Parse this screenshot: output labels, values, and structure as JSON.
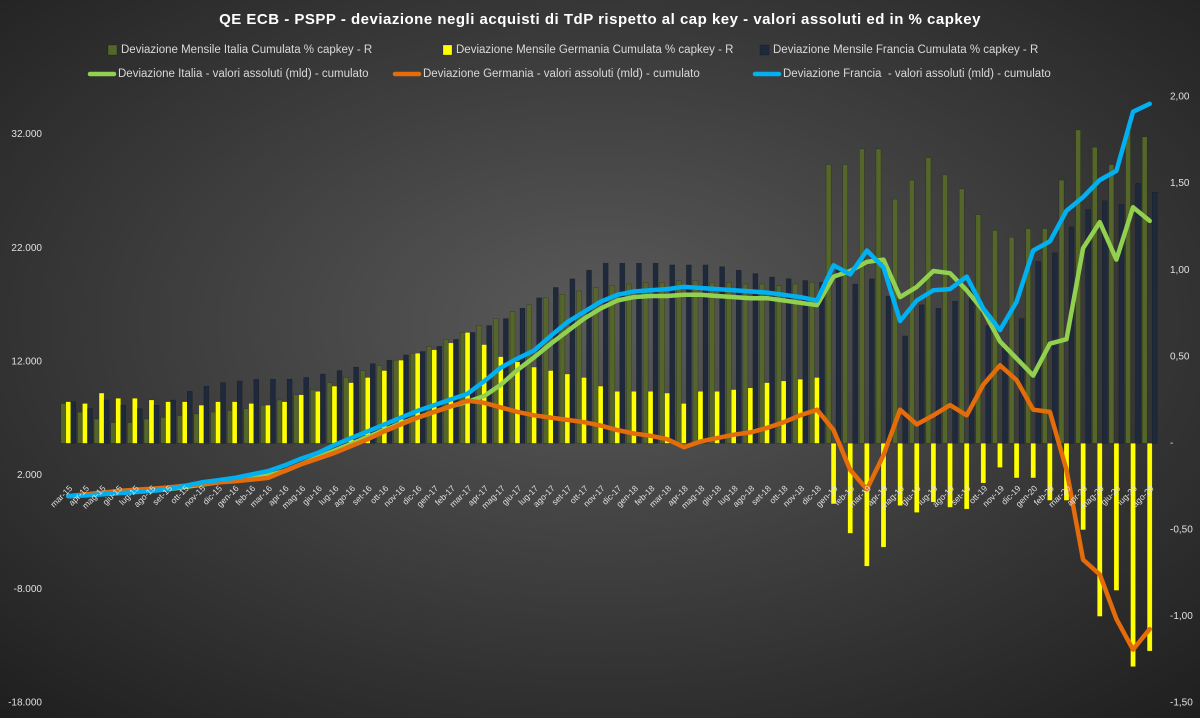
{
  "chart_data": {
    "type": "combo",
    "title": "QE ECB - PSPP - deviazione negli acquisti di TdP rispetto al cap key - valori assoluti ed in % capkey",
    "categories": [
      "mar-15",
      "apr-15",
      "mag-15",
      "giu-15",
      "lug-15",
      "ago-15",
      "set-15",
      "ott-15",
      "nov-15",
      "dic-15",
      "gen-16",
      "feb-16",
      "mar-16",
      "apr-16",
      "mag-16",
      "giu-16",
      "lug-16",
      "ago-16",
      "set-16",
      "ott-16",
      "nov-16",
      "dic-16",
      "gen-17",
      "feb-17",
      "mar-17",
      "apr-17",
      "mag-17",
      "giu-17",
      "lug-17",
      "ago-17",
      "set-17",
      "ott-17",
      "nov-17",
      "dic-17",
      "gen-18",
      "feb-18",
      "mar-18",
      "apr-18",
      "mag-18",
      "giu-18",
      "lug-18",
      "ago-18",
      "set-18",
      "ott-18",
      "nov-18",
      "dic-18",
      "gen-19",
      "feb-19",
      "mar-19",
      "apr-19",
      "mag-19",
      "giu-19",
      "lug-19",
      "ago-19",
      "set-19",
      "ott-19",
      "nov-19",
      "dic-19",
      "gen-20",
      "feb-20",
      "mar-20",
      "apr-20",
      "mag-20",
      "giu-20",
      "lug-20",
      "ago-20"
    ],
    "ylim": [
      -18000,
      35300
    ],
    "yticks": [
      {
        "value": -18000,
        "label": "-18.000"
      },
      {
        "value": -8000,
        "label": "-8.000"
      },
      {
        "value": 2000,
        "label": "2.000"
      },
      {
        "value": 12000,
        "label": "12.000"
      },
      {
        "value": 22000,
        "label": "22.000"
      },
      {
        "value": 32000,
        "label": "32.000"
      }
    ],
    "y2lim": [
      -1.5,
      2.0
    ],
    "y2ticks": [
      {
        "value": -1.5,
        "label": "-1,50"
      },
      {
        "value": -1.0,
        "label": "-1,00"
      },
      {
        "value": -0.5,
        "label": "-0,50"
      },
      {
        "value": 0,
        "label": "-"
      },
      {
        "value": 0.5,
        "label": "0,50"
      },
      {
        "value": 1.0,
        "label": "1,00"
      },
      {
        "value": 1.5,
        "label": "1,50"
      },
      {
        "value": 2.0,
        "label": "2,00"
      }
    ],
    "grid": false,
    "series": [
      {
        "name": "Deviazione Mensile Italia Cumulata % capkey - R",
        "type": "bar",
        "axis": "y2",
        "color": "#55662a",
        "values": [
          0.23,
          0.18,
          0.14,
          0.12,
          0.12,
          0.14,
          0.15,
          0.16,
          0.17,
          0.18,
          0.19,
          0.2,
          0.22,
          0.25,
          0.28,
          0.31,
          0.35,
          0.38,
          0.42,
          0.45,
          0.48,
          0.52,
          0.56,
          0.6,
          0.64,
          0.68,
          0.72,
          0.76,
          0.8,
          0.84,
          0.86,
          0.88,
          0.9,
          0.91,
          0.92,
          0.93,
          0.93,
          0.94,
          0.94,
          0.93,
          0.93,
          0.92,
          0.92,
          0.91,
          0.92,
          0.93,
          1.61,
          1.61,
          1.7,
          1.7,
          1.41,
          1.52,
          1.65,
          1.55,
          1.47,
          1.32,
          1.23,
          1.19,
          1.24,
          1.24,
          1.52,
          1.81,
          1.71,
          1.61,
          1.81,
          1.77
        ]
      },
      {
        "name": "Deviazione Mensile Germania Cumulata % capkey - R",
        "type": "bar",
        "axis": "y2",
        "color": "#ffff00",
        "values": [
          0.24,
          0.23,
          0.29,
          0.26,
          0.26,
          0.25,
          0.24,
          0.24,
          0.22,
          0.24,
          0.24,
          0.23,
          0.22,
          0.24,
          0.28,
          0.3,
          0.33,
          0.35,
          0.38,
          0.42,
          0.48,
          0.52,
          0.54,
          0.58,
          0.64,
          0.57,
          0.5,
          0.47,
          0.44,
          0.42,
          0.4,
          0.38,
          0.33,
          0.3,
          0.3,
          0.3,
          0.29,
          0.23,
          0.3,
          0.3,
          0.31,
          0.32,
          0.35,
          0.36,
          0.37,
          0.38,
          -0.35,
          -0.52,
          -0.71,
          -0.6,
          -0.36,
          -0.4,
          -0.34,
          -0.37,
          -0.38,
          -0.23,
          -0.14,
          -0.2,
          -0.2,
          -0.33,
          -0.33,
          -0.5,
          -1.0,
          -0.85,
          -1.29,
          -1.2
        ]
      },
      {
        "name": "Deviazione Mensile Francia Cumulata % capkey - R",
        "type": "bar",
        "axis": "y2",
        "color": "#1e2a3c",
        "values": [
          0.24,
          0.2,
          0.25,
          0.22,
          0.2,
          0.22,
          0.25,
          0.3,
          0.33,
          0.35,
          0.36,
          0.37,
          0.37,
          0.37,
          0.38,
          0.4,
          0.42,
          0.44,
          0.46,
          0.48,
          0.51,
          0.53,
          0.56,
          0.6,
          0.64,
          0.68,
          0.72,
          0.78,
          0.84,
          0.9,
          0.95,
          1.0,
          1.04,
          1.04,
          1.04,
          1.04,
          1.03,
          1.03,
          1.03,
          1.02,
          1.0,
          0.98,
          0.96,
          0.95,
          0.94,
          0.93,
          1.0,
          0.92,
          0.95,
          0.85,
          0.62,
          0.8,
          0.78,
          0.82,
          0.9,
          0.68,
          0.55,
          0.72,
          1.05,
          1.1,
          1.25,
          1.35,
          1.4,
          1.38,
          1.5,
          1.45
        ]
      },
      {
        "name": "Deviazione Italia - valori assoluti (mld) - cumulato",
        "type": "line",
        "color": "#92d050",
        "values": [
          200,
          300,
          400,
          500,
          600,
          700,
          800,
          1000,
          1200,
          1400,
          1600,
          1800,
          2000,
          2400,
          3000,
          3600,
          4200,
          4800,
          5400,
          6000,
          6600,
          7100,
          7600,
          8100,
          8500,
          9000,
          10000,
          11300,
          12400,
          13600,
          14700,
          15800,
          16700,
          17400,
          17700,
          17800,
          17800,
          17900,
          17900,
          17800,
          17700,
          17600,
          17600,
          17400,
          17200,
          17000,
          19500,
          20000,
          20800,
          21000,
          17700,
          18600,
          20000,
          19800,
          18300,
          16500,
          13800,
          12300,
          10800,
          13600,
          14000,
          22000,
          24300,
          21000,
          25600,
          24400
        ]
      },
      {
        "name": "Deviazione Germania - valori assoluti (mld) - cumulato",
        "type": "line",
        "color": "#e46c0a",
        "values": [
          200,
          350,
          500,
          650,
          750,
          850,
          950,
          1100,
          1250,
          1400,
          1500,
          1650,
          1800,
          2400,
          3000,
          3500,
          4000,
          4600,
          5200,
          5900,
          6500,
          7100,
          7600,
          8100,
          8600,
          8400,
          8000,
          7600,
          7300,
          7100,
          6900,
          6700,
          6400,
          6000,
          5700,
          5500,
          5200,
          4500,
          5000,
          5300,
          5600,
          5800,
          6200,
          6700,
          7300,
          7800,
          6000,
          2500,
          800,
          3800,
          7800,
          6500,
          7300,
          8200,
          7300,
          10000,
          11700,
          10400,
          7800,
          7600,
          2500,
          -5400,
          -6700,
          -10600,
          -13300,
          -11500
        ]
      },
      {
        "name": "Deviazione Francia  - valori assoluti (mld) - cumulato",
        "type": "line",
        "color": "#00b0f0",
        "values": [
          200,
          250,
          350,
          450,
          550,
          650,
          800,
          1100,
          1400,
          1600,
          1800,
          2100,
          2400,
          2900,
          3500,
          4000,
          4700,
          5300,
          5900,
          6500,
          7100,
          7700,
          8200,
          8700,
          9200,
          10300,
          11500,
          12300,
          13000,
          14300,
          15500,
          16400,
          17300,
          17900,
          18200,
          18300,
          18400,
          18600,
          18500,
          18400,
          18300,
          18200,
          18100,
          17900,
          17700,
          17400,
          20500,
          19700,
          21800,
          20300,
          15600,
          17400,
          18300,
          18400,
          19500,
          16700,
          14800,
          17300,
          21800,
          22600,
          25300,
          26500,
          28000,
          28800,
          34000,
          34700
        ]
      }
    ]
  }
}
